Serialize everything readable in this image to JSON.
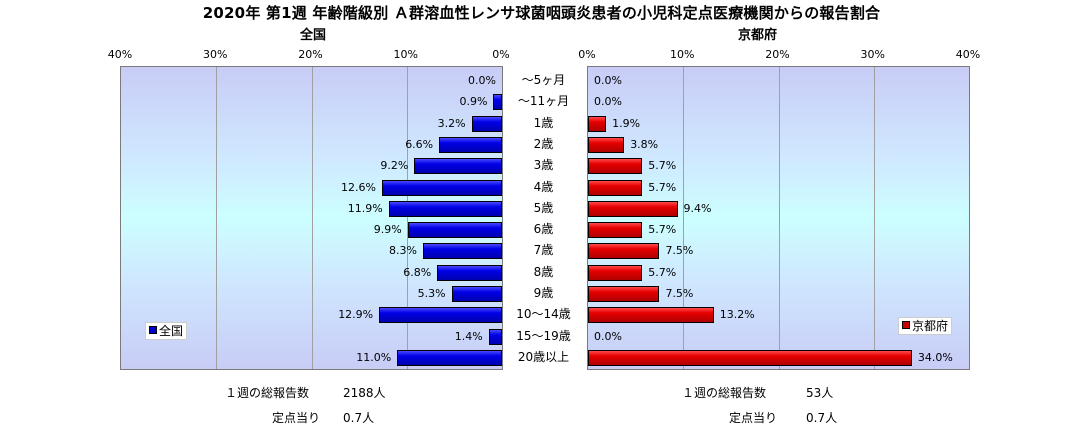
{
  "chart_data": {
    "type": "bar",
    "title": "2020年 第1週 年齢階級別 Ａ群溶血性レンサ球菌咽頭炎患者の小児科定点医療機関からの報告割合",
    "categories": [
      "～5ヶ月",
      "～11ヶ月",
      "1歳",
      "2歳",
      "3歳",
      "4歳",
      "5歳",
      "6歳",
      "7歳",
      "8歳",
      "9歳",
      "10～14歳",
      "15～19歳",
      "20歳以上"
    ],
    "series": [
      {
        "name": "全国",
        "values": [
          0.0,
          0.9,
          3.2,
          6.6,
          9.2,
          12.6,
          11.9,
          9.9,
          8.3,
          6.8,
          5.3,
          12.9,
          1.4,
          11.0
        ],
        "labels": [
          "0.0%",
          "0.9%",
          "3.2%",
          "6.6%",
          "9.2%",
          "12.6%",
          "11.9%",
          "9.9%",
          "8.3%",
          "6.8%",
          "5.3%",
          "12.9%",
          "1.4%",
          "11.0%"
        ],
        "color": "#0000cc"
      },
      {
        "name": "京都府",
        "values": [
          0.0,
          0.0,
          1.9,
          3.8,
          5.7,
          5.7,
          9.4,
          5.7,
          7.5,
          5.7,
          7.5,
          13.2,
          0.0,
          34.0
        ],
        "labels": [
          "0.0%",
          "0.0%",
          "1.9%",
          "3.8%",
          "5.7%",
          "5.7%",
          "9.4%",
          "5.7%",
          "7.5%",
          "5.7%",
          "7.5%",
          "13.2%",
          "0.0%",
          "34.0%"
        ],
        "color": "#cc0000"
      }
    ],
    "xlim": [
      0,
      40
    ],
    "left_ticks": [
      "40%",
      "30%",
      "20%",
      "10%",
      "0%"
    ],
    "right_ticks": [
      "0%",
      "10%",
      "20%",
      "30%",
      "40%"
    ],
    "grid": true,
    "legend_position": "bottom-left / bottom-right"
  },
  "panels": {
    "left_title": "全国",
    "right_title": "京都府"
  },
  "footer": {
    "left": {
      "total_label": "１週の総報告数",
      "total_value": "2188人",
      "per_label": "定点当り",
      "per_value": "0.7人"
    },
    "right": {
      "total_label": "１週の総報告数",
      "total_value": "53人",
      "per_label": "定点当り",
      "per_value": "0.7人"
    }
  }
}
